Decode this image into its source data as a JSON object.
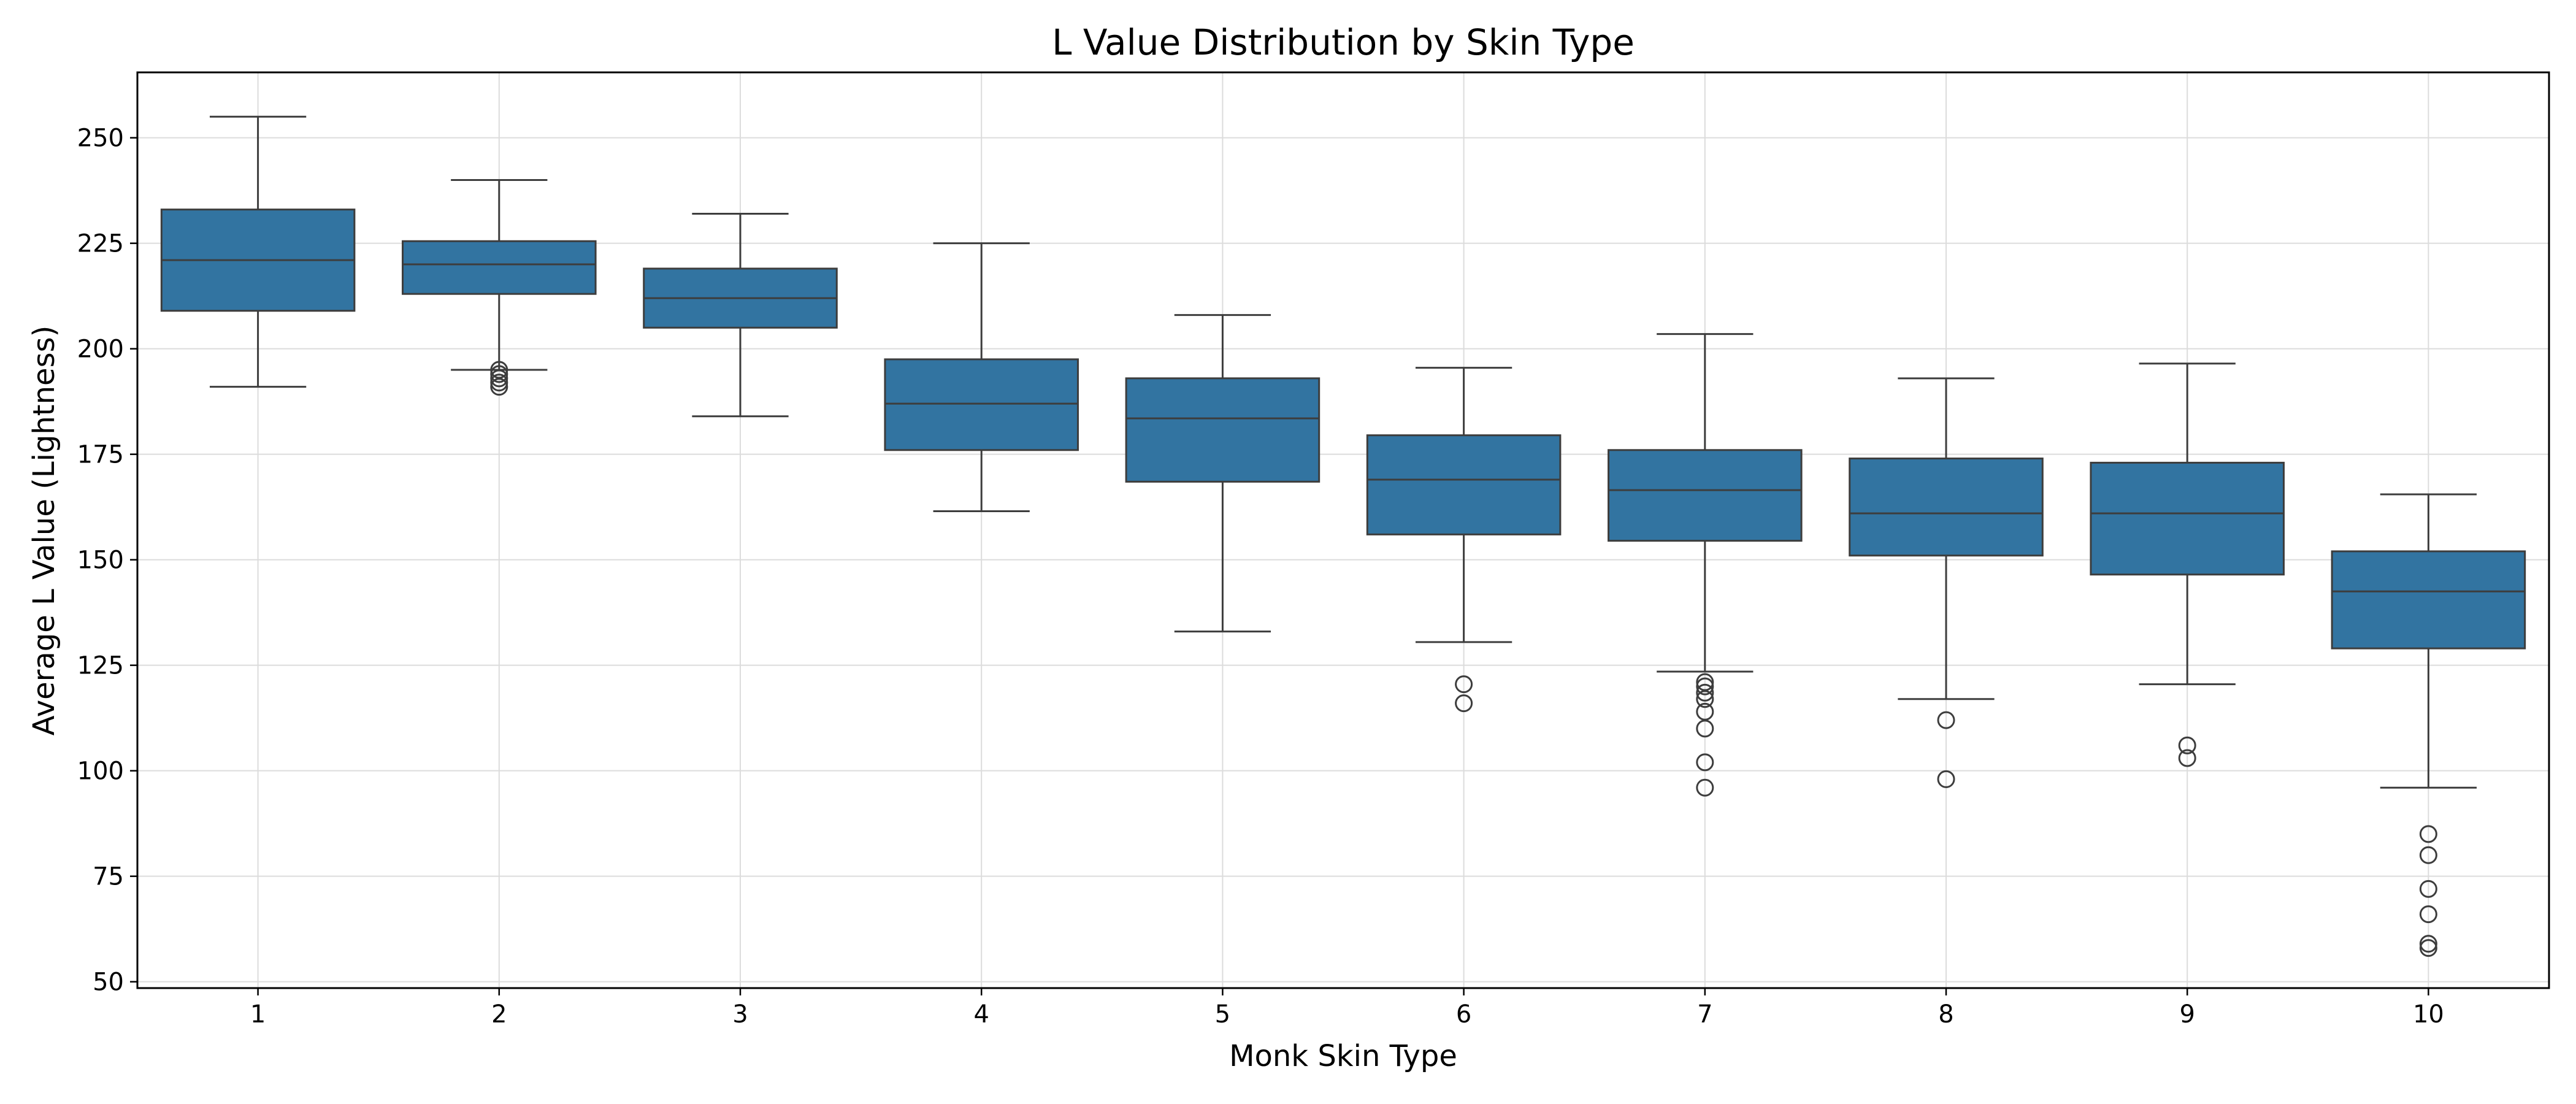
{
  "chart_data": {
    "type": "box",
    "title": "L Value Distribution by Skin Type",
    "xlabel": "Monk Skin Type",
    "ylabel": "Average L Value (Lightness)",
    "ylim": [
      48.5,
      265.5
    ],
    "yticks": [
      50,
      75,
      100,
      125,
      150,
      175,
      200,
      225,
      250
    ],
    "grid": true,
    "box_color": "#3274a1",
    "line_color": "#3d3d3d",
    "categories": [
      "1",
      "2",
      "3",
      "4",
      "5",
      "6",
      "7",
      "8",
      "9",
      "10"
    ],
    "boxes": [
      {
        "category": "1",
        "whisker_low": 191,
        "q1": 209,
        "median": 221,
        "q3": 233,
        "whisker_high": 255,
        "outliers": []
      },
      {
        "category": "2",
        "whisker_low": 195,
        "q1": 213,
        "median": 220,
        "q3": 225.5,
        "whisker_high": 240,
        "outliers": [
          191,
          192,
          193,
          194,
          195
        ]
      },
      {
        "category": "3",
        "whisker_low": 184,
        "q1": 205,
        "median": 212,
        "q3": 219,
        "whisker_high": 232,
        "outliers": []
      },
      {
        "category": "4",
        "whisker_low": 161.5,
        "q1": 176,
        "median": 187,
        "q3": 197.5,
        "whisker_high": 225,
        "outliers": []
      },
      {
        "category": "5",
        "whisker_low": 133,
        "q1": 168.5,
        "median": 183.5,
        "q3": 193,
        "whisker_high": 208,
        "outliers": []
      },
      {
        "category": "6",
        "whisker_low": 130.5,
        "q1": 156,
        "median": 169,
        "q3": 179.5,
        "whisker_high": 195.5,
        "outliers": [
          116,
          120.5
        ]
      },
      {
        "category": "7",
        "whisker_low": 123.5,
        "q1": 154.5,
        "median": 166.5,
        "q3": 176,
        "whisker_high": 203.5,
        "outliers": [
          96,
          102,
          110,
          114,
          117,
          118.5,
          120,
          121
        ]
      },
      {
        "category": "8",
        "whisker_low": 117,
        "q1": 151,
        "median": 161,
        "q3": 174,
        "whisker_high": 193,
        "outliers": [
          98,
          112
        ]
      },
      {
        "category": "9",
        "whisker_low": 120.5,
        "q1": 146.5,
        "median": 161,
        "q3": 173,
        "whisker_high": 196.5,
        "outliers": [
          103,
          106
        ]
      },
      {
        "category": "10",
        "whisker_low": 96,
        "q1": 129,
        "median": 142.5,
        "q3": 152,
        "whisker_high": 165.5,
        "outliers": [
          58,
          59,
          66,
          72,
          80,
          85
        ]
      }
    ]
  }
}
